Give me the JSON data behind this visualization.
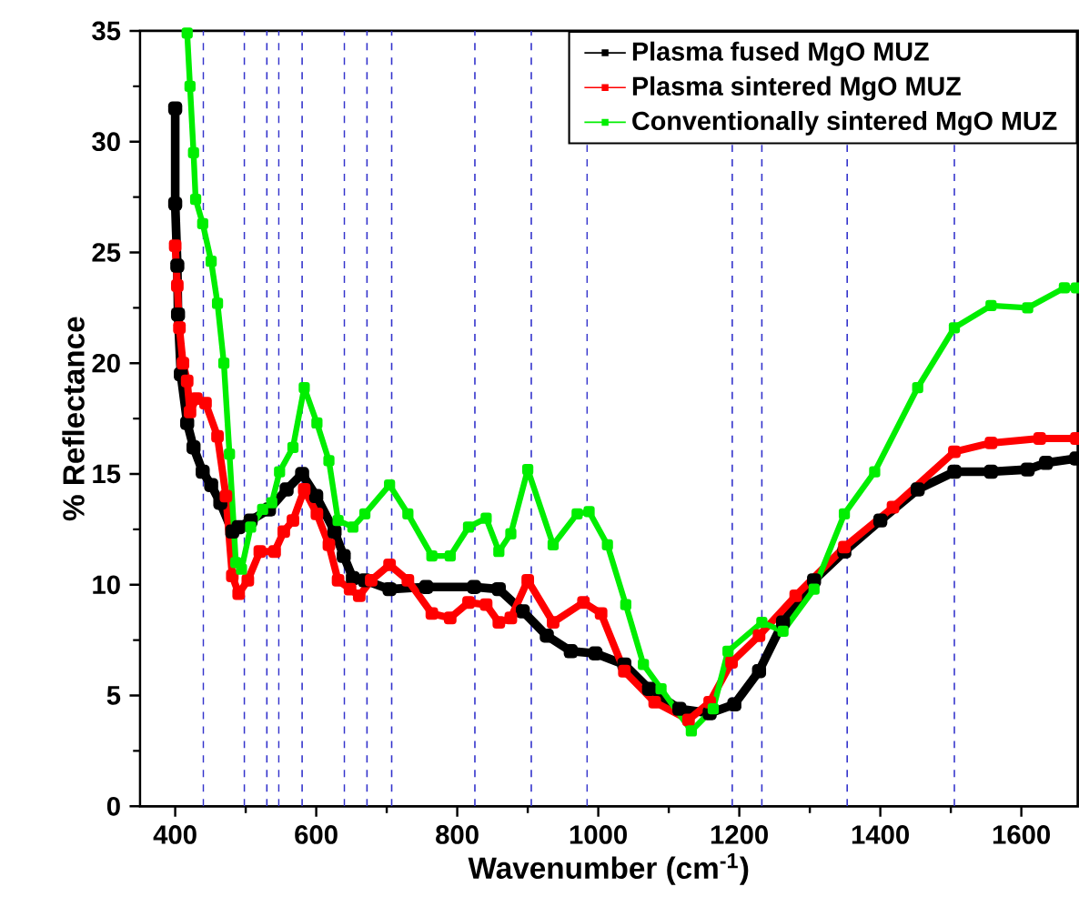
{
  "chart_data": {
    "type": "line",
    "xlabel": "Wavenumber (cm$^{-1}$)",
    "ylabel": "% Reflectance",
    "xlim": [
      350,
      1680
    ],
    "ylim": [
      0,
      35
    ],
    "xticks": [
      400,
      600,
      800,
      1000,
      1200,
      1400,
      1600
    ],
    "yticks": [
      0,
      5,
      10,
      15,
      20,
      25,
      30,
      35
    ],
    "legend": "top right",
    "marker": "square",
    "line_style": "solid",
    "grid": false,
    "series": [
      {
        "name": "Plasma fused MgO MUZ",
        "color": "#000000",
        "x": [
          400,
          400,
          403,
          404,
          408,
          417,
          426,
          439,
          451,
          464,
          481,
          490,
          507,
          533,
          558,
          580,
          600,
          626,
          639,
          652,
          669,
          704,
          756,
          824,
          859,
          893,
          927,
          961,
          996,
          1037,
          1072,
          1115,
          1158,
          1193,
          1228,
          1262,
          1306,
          1349,
          1400,
          1453,
          1505,
          1557,
          1609,
          1635,
          1678
        ],
        "values": [
          31.5,
          27.2,
          24.4,
          22.2,
          19.5,
          17.3,
          16.2,
          15.1,
          14.5,
          13.7,
          12.4,
          12.6,
          12.9,
          13.4,
          14.3,
          15.0,
          14.0,
          12.4,
          11.3,
          10.3,
          10.2,
          9.8,
          9.9,
          9.9,
          9.8,
          8.8,
          7.7,
          7.0,
          6.9,
          6.4,
          5.3,
          4.4,
          4.2,
          4.6,
          6.1,
          8.3,
          10.2,
          11.5,
          12.9,
          14.3,
          15.1,
          15.1,
          15.2,
          15.5,
          15.7
        ]
      },
      {
        "name": "Plasma sintered MgO MUZ",
        "color": "#ff0000",
        "x": [
          400,
          403,
          406,
          411,
          417,
          421,
          430,
          443,
          460,
          472,
          481,
          490,
          503,
          520,
          541,
          554,
          567,
          583,
          601,
          618,
          631,
          648,
          661,
          678,
          704,
          730,
          764,
          790,
          816,
          841,
          859,
          876,
          900,
          936,
          979,
          1004,
          1037,
          1080,
          1128,
          1158,
          1189,
          1228,
          1280,
          1349,
          1418,
          1505,
          1557,
          1626,
          1678
        ],
        "values": [
          25.3,
          23.5,
          21.6,
          20.0,
          19.2,
          17.8,
          18.4,
          18.2,
          16.7,
          14.0,
          10.4,
          9.6,
          10.2,
          11.5,
          11.5,
          12.4,
          12.9,
          14.3,
          13.2,
          11.8,
          10.2,
          9.8,
          9.5,
          10.2,
          10.9,
          10.2,
          8.7,
          8.5,
          9.2,
          9.1,
          8.3,
          8.5,
          10.2,
          8.3,
          9.2,
          8.7,
          6.1,
          4.7,
          3.9,
          4.7,
          6.5,
          7.7,
          9.5,
          11.7,
          13.5,
          16.0,
          16.4,
          16.6,
          16.6
        ]
      },
      {
        "name": "Conventionally sintered MgO MUZ",
        "color": "#00ee00",
        "x": [
          417,
          421,
          426,
          429,
          439,
          451,
          460,
          469,
          477,
          486,
          494,
          507,
          524,
          537,
          548,
          567,
          583,
          601,
          618,
          631,
          652,
          669,
          704,
          730,
          764,
          790,
          816,
          841,
          859,
          876,
          900,
          936,
          970,
          987,
          1013,
          1039,
          1064,
          1089,
          1132,
          1163,
          1184,
          1232,
          1262,
          1306,
          1349,
          1392,
          1453,
          1505,
          1557,
          1609,
          1661,
          1678
        ],
        "values": [
          34.9,
          32.5,
          29.5,
          27.4,
          26.3,
          24.6,
          22.7,
          20.0,
          15.9,
          11.0,
          10.7,
          12.6,
          13.4,
          13.7,
          15.1,
          16.2,
          18.9,
          17.3,
          15.6,
          12.9,
          12.6,
          13.2,
          14.5,
          13.2,
          11.3,
          11.3,
          12.6,
          13.0,
          11.5,
          12.3,
          15.2,
          11.8,
          13.2,
          13.3,
          11.8,
          9.1,
          6.4,
          5.3,
          3.4,
          4.4,
          7.0,
          8.3,
          7.9,
          9.8,
          13.2,
          15.1,
          18.9,
          21.6,
          22.6,
          22.5,
          23.4,
          23.4
        ]
      }
    ],
    "ref_lines": [
      {
        "axis": "x",
        "value": 440,
        "color": "#3333cc",
        "line_style": "dashed"
      },
      {
        "axis": "x",
        "value": 498,
        "color": "#3333cc",
        "line_style": "dashed"
      },
      {
        "axis": "x",
        "value": 530,
        "color": "#3333cc",
        "line_style": "dashed"
      },
      {
        "axis": "x",
        "value": 547,
        "color": "#3333cc",
        "line_style": "dashed"
      },
      {
        "axis": "x",
        "value": 580,
        "color": "#3333cc",
        "line_style": "dashed"
      },
      {
        "axis": "x",
        "value": 640,
        "color": "#3333cc",
        "line_style": "dashed"
      },
      {
        "axis": "x",
        "value": 672,
        "color": "#3333cc",
        "line_style": "dashed"
      },
      {
        "axis": "x",
        "value": 707,
        "color": "#3333cc",
        "line_style": "dashed"
      },
      {
        "axis": "x",
        "value": 825,
        "color": "#3333cc",
        "line_style": "dashed"
      },
      {
        "axis": "x",
        "value": 905,
        "color": "#3333cc",
        "line_style": "dashed"
      },
      {
        "axis": "x",
        "value": 984,
        "color": "#3333cc",
        "line_style": "dashed"
      },
      {
        "axis": "x",
        "value": 1190,
        "color": "#3333cc",
        "line_style": "dashed"
      },
      {
        "axis": "x",
        "value": 1232,
        "color": "#3333cc",
        "line_style": "dashed"
      },
      {
        "axis": "x",
        "value": 1353,
        "color": "#3333cc",
        "line_style": "dashed"
      },
      {
        "axis": "x",
        "value": 1505,
        "color": "#3333cc",
        "line_style": "dashed"
      }
    ]
  }
}
